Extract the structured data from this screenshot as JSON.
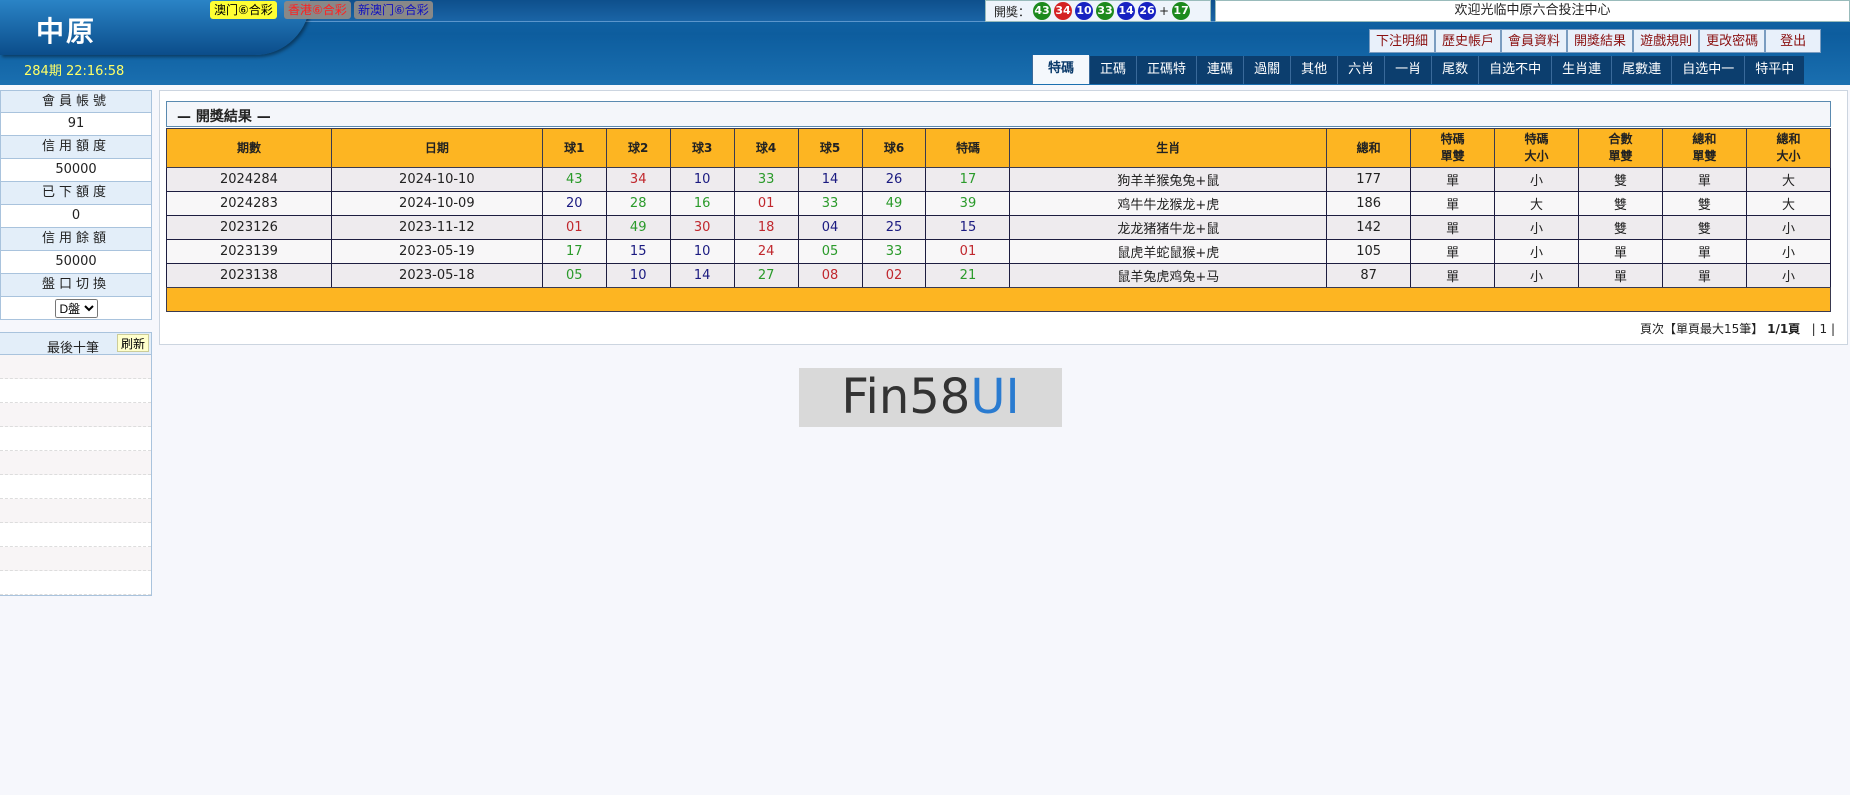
{
  "header": {
    "logo": "中原",
    "period": "284期 22:16:58",
    "lottery_tabs": [
      {
        "label": "澳门⑥合彩",
        "bg": "#ffff33",
        "fg": "#000"
      },
      {
        "label": "香港⑥合彩",
        "bg": "#888888",
        "fg": "#ff2020"
      },
      {
        "label": "新澳门⑥合彩",
        "bg": "#888888",
        "fg": "#1010c0"
      }
    ],
    "draw_label": "開獎：",
    "draw_balls": [
      {
        "n": "43",
        "c": "g"
      },
      {
        "n": "34",
        "c": "r"
      },
      {
        "n": "10",
        "c": "b"
      },
      {
        "n": "33",
        "c": "g"
      },
      {
        "n": "14",
        "c": "b"
      },
      {
        "n": "26",
        "c": "b"
      }
    ],
    "plus": "+",
    "special_ball": {
      "n": "17",
      "c": "g"
    },
    "welcome": "欢迎光临中原六合投注中心",
    "menu": [
      "下注明細",
      "歷史帳戶",
      "會員資料",
      "開獎結果",
      "遊戲規則",
      "更改密碼",
      "登出"
    ],
    "tabs": [
      "特碼",
      "正碼",
      "正碼特",
      "連碼",
      "過關",
      "其他",
      "六肖",
      "一肖",
      "尾数",
      "自选不中",
      "生肖連",
      "尾數連",
      "自选中一",
      "特平中"
    ],
    "active_tab": "特碼"
  },
  "sidebar": {
    "items": [
      {
        "label": "會員帳號",
        "value": "91"
      },
      {
        "label": "信用額度",
        "value": "50000"
      },
      {
        "label": "已下額度",
        "value": "0"
      },
      {
        "label": "信用餘額",
        "value": "50000"
      }
    ],
    "switch_label": "盤口切換",
    "switch_value": "D盤",
    "last10_title": "最後十筆",
    "refresh": "刷新"
  },
  "main": {
    "title": "— 開獎結果 —",
    "columns": [
      "期數",
      "日期",
      "球1",
      "球2",
      "球3",
      "球4",
      "球5",
      "球6",
      "特碼",
      "生肖",
      "總和",
      "特碼\n單雙",
      "特碼\n大小",
      "合數\n單雙",
      "總和\n單雙",
      "總和\n大小"
    ],
    "rows": [
      {
        "period": "2024284",
        "date": "2024-10-10",
        "balls": [
          [
            "43",
            "g"
          ],
          [
            "34",
            "r"
          ],
          [
            "10",
            "b"
          ],
          [
            "33",
            "g"
          ],
          [
            "14",
            "b"
          ],
          [
            "26",
            "b"
          ]
        ],
        "special": [
          "17",
          "g"
        ],
        "zodiac": "狗羊羊猴兔兔+鼠",
        "sum": "177",
        "s_oe": "單",
        "s_bs": "小",
        "c_oe": "雙",
        "t_oe": "單",
        "t_bs": "大"
      },
      {
        "period": "2024283",
        "date": "2024-10-09",
        "balls": [
          [
            "20",
            "b"
          ],
          [
            "28",
            "g"
          ],
          [
            "16",
            "g"
          ],
          [
            "01",
            "r"
          ],
          [
            "33",
            "g"
          ],
          [
            "49",
            "g"
          ]
        ],
        "special": [
          "39",
          "g"
        ],
        "zodiac": "鸡牛牛龙猴龙+虎",
        "sum": "186",
        "s_oe": "單",
        "s_bs": "大",
        "c_oe": "雙",
        "t_oe": "雙",
        "t_bs": "大"
      },
      {
        "period": "2023126",
        "date": "2023-11-12",
        "balls": [
          [
            "01",
            "r"
          ],
          [
            "49",
            "g"
          ],
          [
            "30",
            "r"
          ],
          [
            "18",
            "r"
          ],
          [
            "04",
            "b"
          ],
          [
            "25",
            "b"
          ]
        ],
        "special": [
          "15",
          "b"
        ],
        "zodiac": "龙龙猪猪牛龙+鼠",
        "sum": "142",
        "s_oe": "單",
        "s_bs": "小",
        "c_oe": "雙",
        "t_oe": "雙",
        "t_bs": "小"
      },
      {
        "period": "2023139",
        "date": "2023-05-19",
        "balls": [
          [
            "17",
            "g"
          ],
          [
            "15",
            "b"
          ],
          [
            "10",
            "b"
          ],
          [
            "24",
            "r"
          ],
          [
            "05",
            "g"
          ],
          [
            "33",
            "g"
          ]
        ],
        "special": [
          "01",
          "r"
        ],
        "zodiac": "鼠虎羊蛇鼠猴+虎",
        "sum": "105",
        "s_oe": "單",
        "s_bs": "小",
        "c_oe": "單",
        "t_oe": "單",
        "t_bs": "小"
      },
      {
        "period": "2023138",
        "date": "2023-05-18",
        "balls": [
          [
            "05",
            "g"
          ],
          [
            "10",
            "b"
          ],
          [
            "14",
            "b"
          ],
          [
            "27",
            "g"
          ],
          [
            "08",
            "r"
          ],
          [
            "02",
            "r"
          ]
        ],
        "special": [
          "21",
          "g"
        ],
        "zodiac": "鼠羊兔虎鸡兔+马",
        "sum": "87",
        "s_oe": "單",
        "s_bs": "小",
        "c_oe": "單",
        "t_oe": "單",
        "t_bs": "小"
      }
    ],
    "pager": {
      "text": "頁次【單頁最大15筆】",
      "pages": "1/1頁",
      "links": "| 1 |"
    }
  },
  "watermark": {
    "a": "Fin58",
    "b": "UI"
  }
}
